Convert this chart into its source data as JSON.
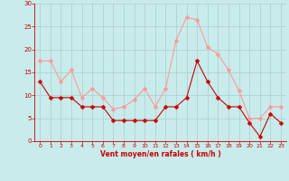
{
  "x": [
    0,
    1,
    2,
    3,
    4,
    5,
    6,
    7,
    8,
    9,
    10,
    11,
    12,
    13,
    14,
    15,
    16,
    17,
    18,
    19,
    20,
    21,
    22,
    23
  ],
  "y_mean": [
    13,
    9.5,
    9.5,
    9.5,
    7.5,
    7.5,
    7.5,
    4.5,
    4.5,
    4.5,
    4.5,
    4.5,
    7.5,
    7.5,
    9.5,
    17.5,
    13,
    9.5,
    7.5,
    7.5,
    4,
    1,
    6,
    4
  ],
  "y_gust": [
    17.5,
    17.5,
    13,
    15.5,
    9.5,
    11.5,
    9.5,
    7,
    7.5,
    9,
    11.5,
    7.5,
    11.5,
    22,
    27,
    26.5,
    20.5,
    19,
    15.5,
    11,
    5,
    5,
    7.5,
    7.5
  ],
  "color_mean": "#cc0000",
  "color_gust": "#ff9999",
  "bg_color": "#c8ecec",
  "grid_color": "#aacccc",
  "ylim": [
    0,
    30
  ],
  "xlim_min": -0.5,
  "xlim_max": 23.5,
  "yticks": [
    0,
    5,
    10,
    15,
    20,
    25,
    30
  ],
  "xticks": [
    0,
    1,
    2,
    3,
    4,
    5,
    6,
    7,
    8,
    9,
    10,
    11,
    12,
    13,
    14,
    15,
    16,
    17,
    18,
    19,
    20,
    21,
    22,
    23
  ],
  "axis_color": "#cc0000",
  "tick_color": "#cc0000",
  "label_color": "#cc0000",
  "xlabel": "Vent moyen/en rafales ( km/h )",
  "marker_size": 2.5,
  "line_width": 0.8
}
